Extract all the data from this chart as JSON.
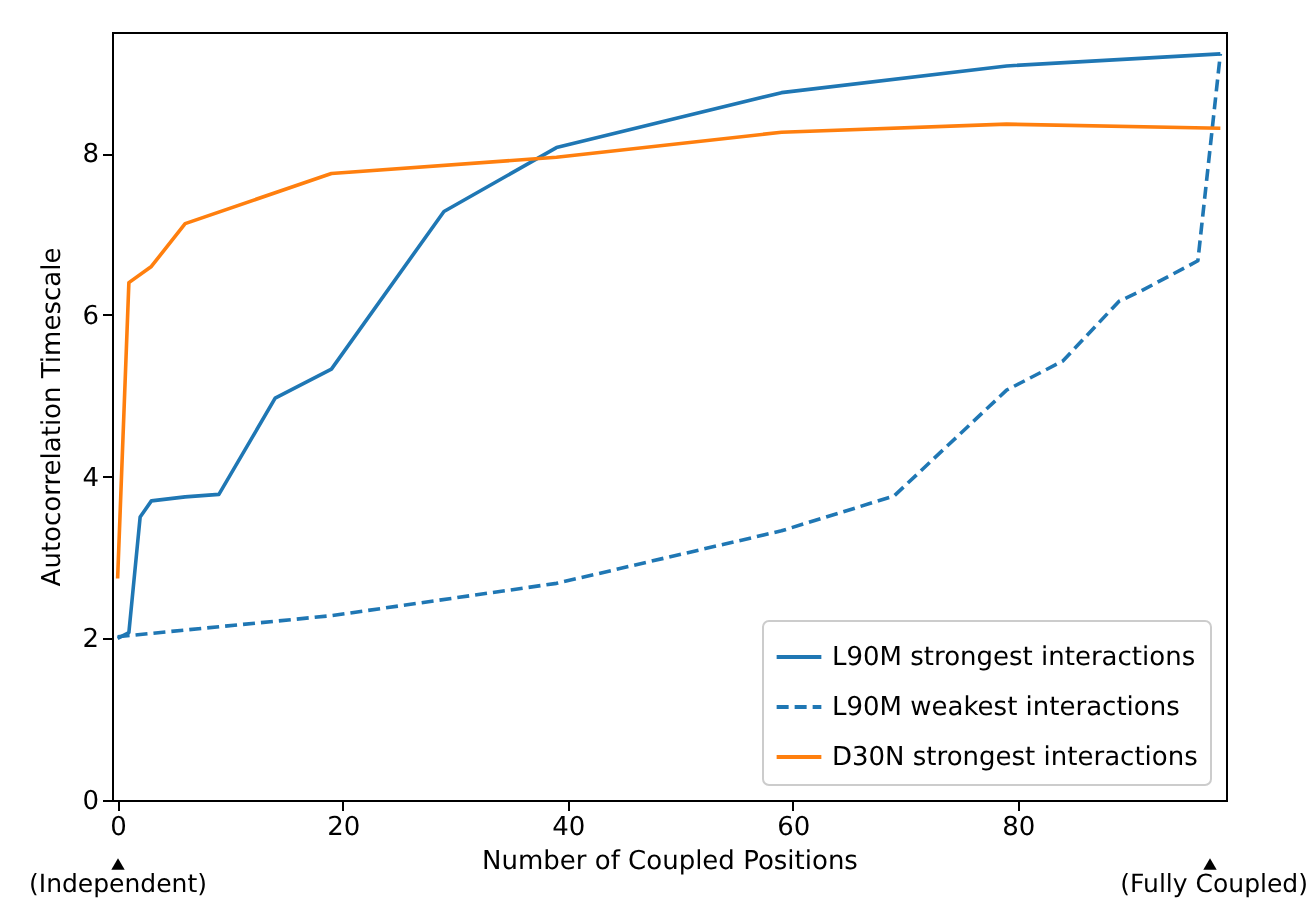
{
  "chart_data": {
    "type": "line",
    "xlabel": "Number of Coupled Positions",
    "ylabel": "Autocorrelation Timescale",
    "xlim": [
      -0.5,
      98.5
    ],
    "ylim": [
      0,
      9.5
    ],
    "xticks": [
      0,
      20,
      40,
      60,
      80
    ],
    "yticks": [
      0,
      2,
      4,
      6,
      8
    ],
    "grid": false,
    "legend": "bottom right",
    "series": [
      {
        "name": "L90M strongest interactions",
        "color": "#1f77b4",
        "line_style": "solid",
        "x": [
          0,
          1,
          2,
          3,
          6,
          9,
          14,
          19,
          29,
          39,
          59,
          79,
          98
        ],
        "values": [
          2.0,
          2.07,
          3.5,
          3.7,
          3.75,
          3.78,
          4.97,
          5.33,
          7.28,
          8.07,
          8.75,
          9.08,
          9.23
        ]
      },
      {
        "name": "L90M weakest interactions",
        "color": "#1f77b4",
        "line_style": "dashed",
        "x": [
          0,
          19,
          39,
          59,
          69,
          79,
          84,
          89,
          91,
          96,
          98
        ],
        "values": [
          2.02,
          2.28,
          2.68,
          3.33,
          3.76,
          5.07,
          5.43,
          6.17,
          6.3,
          6.67,
          9.23
        ]
      },
      {
        "name": "D30N strongest interactions",
        "color": "#ff7f0e",
        "line_style": "solid",
        "x": [
          0,
          1,
          3,
          6,
          19,
          39,
          59,
          79,
          98
        ],
        "values": [
          2.74,
          6.4,
          6.6,
          7.13,
          7.75,
          7.95,
          8.26,
          8.36,
          8.31
        ]
      }
    ],
    "annotations": [
      "(Independent)",
      "(Fully Coupled)"
    ]
  }
}
